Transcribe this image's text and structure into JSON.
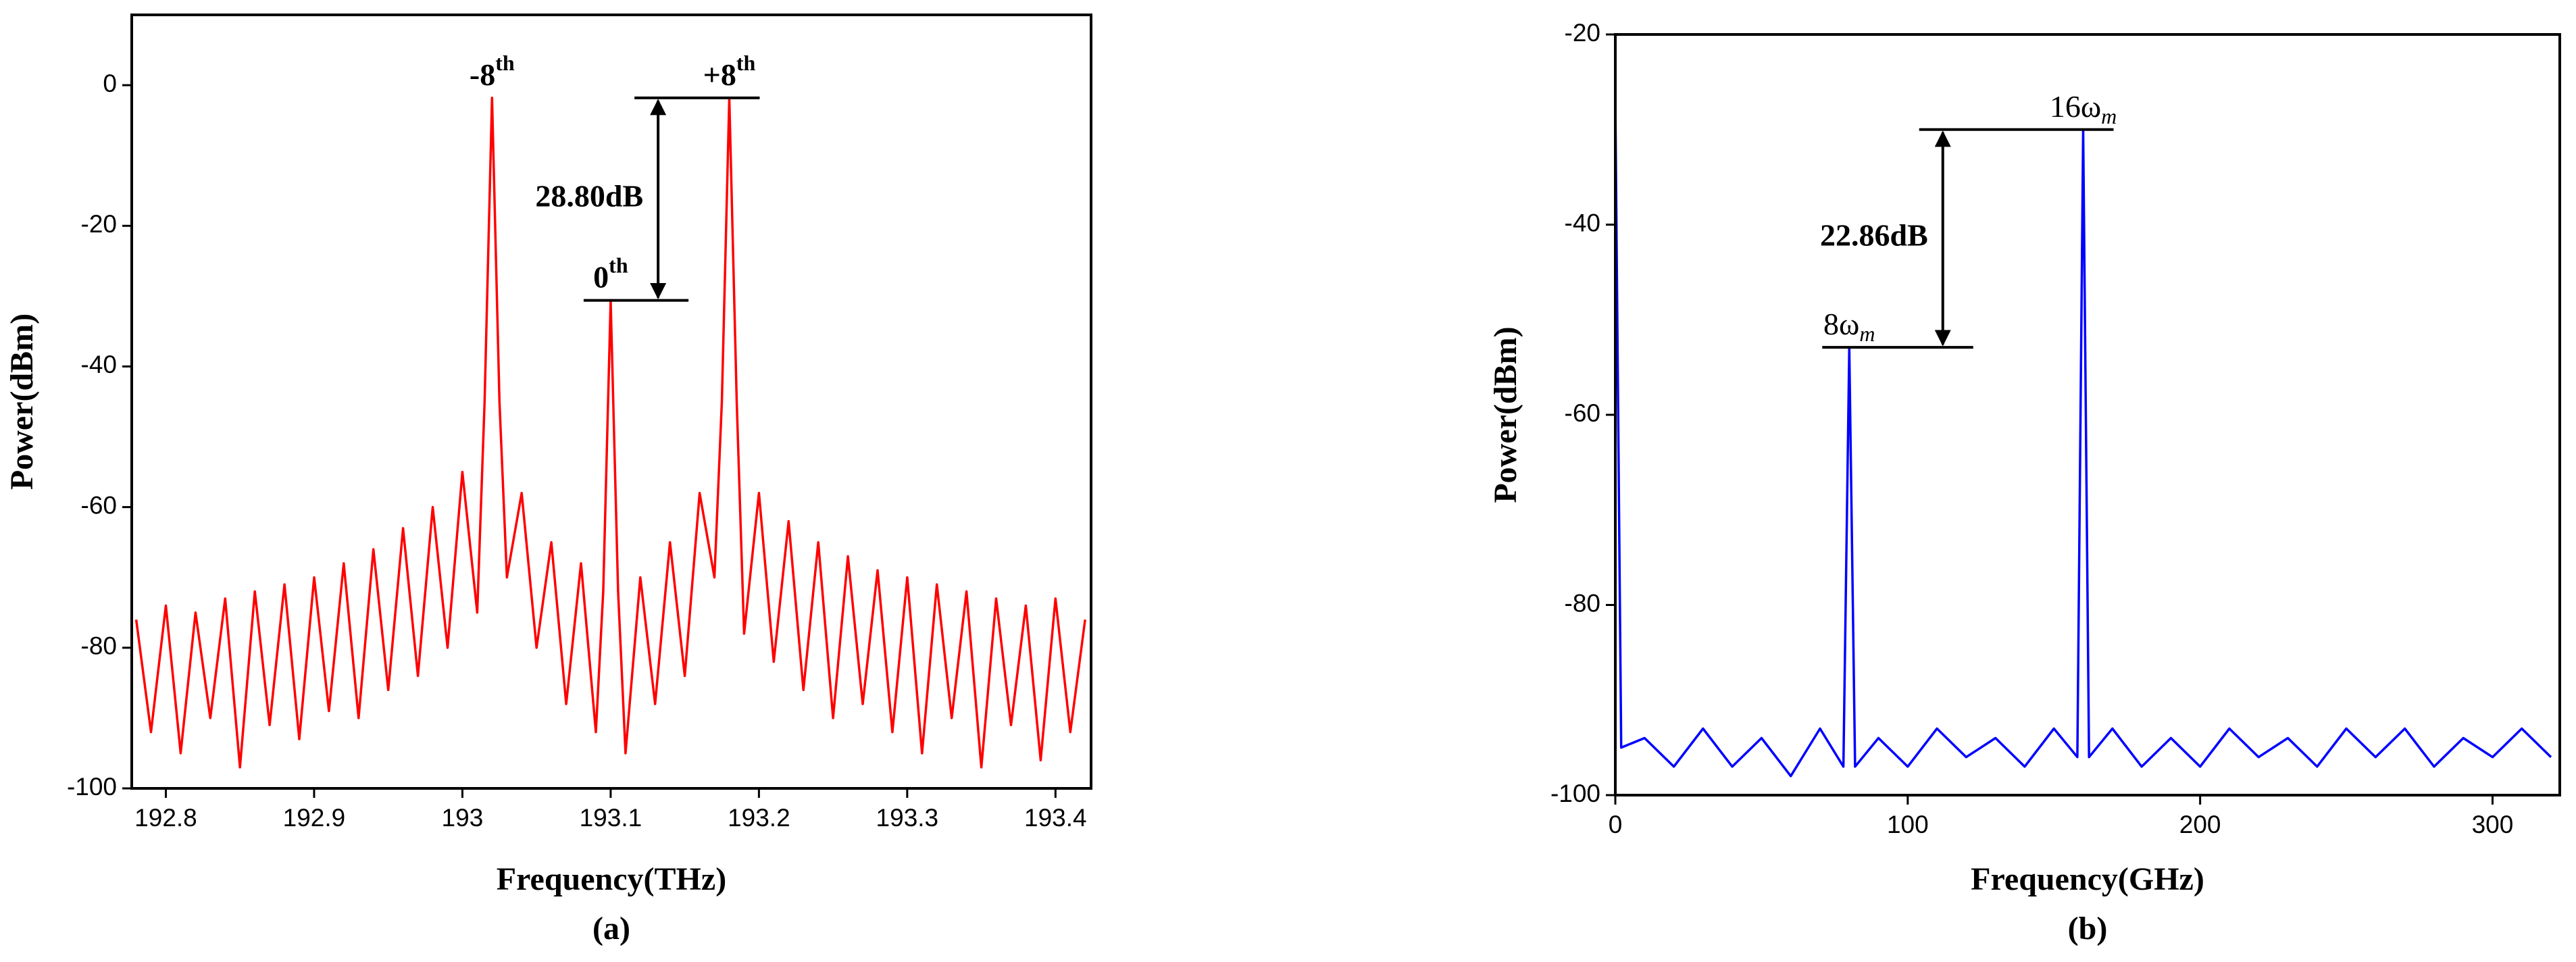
{
  "chart_data": [
    {
      "type": "line",
      "color": "#ff0000",
      "x": [
        192.78,
        192.79,
        192.8,
        192.81,
        192.82,
        192.83,
        192.84,
        192.85,
        192.86,
        192.87,
        192.88,
        192.89,
        192.9,
        192.91,
        192.92,
        192.93,
        192.94,
        192.95,
        192.96,
        192.97,
        192.98,
        192.99,
        193.0,
        193.01,
        193.015,
        193.02,
        193.025,
        193.03,
        193.04,
        193.05,
        193.06,
        193.07,
        193.08,
        193.09,
        193.095,
        193.1,
        193.105,
        193.11,
        193.12,
        193.13,
        193.14,
        193.15,
        193.16,
        193.17,
        193.175,
        193.18,
        193.185,
        193.19,
        193.2,
        193.21,
        193.22,
        193.23,
        193.24,
        193.25,
        193.26,
        193.27,
        193.28,
        193.29,
        193.3,
        193.31,
        193.32,
        193.33,
        193.34,
        193.35,
        193.36,
        193.37,
        193.38,
        193.39,
        193.4,
        193.41,
        193.42
      ],
      "values": [
        -76,
        -92,
        -74,
        -95,
        -75,
        -90,
        -73,
        -97,
        -72,
        -91,
        -71,
        -93,
        -70,
        -89,
        -68,
        -90,
        -66,
        -86,
        -63,
        -84,
        -60,
        -80,
        -55,
        -75,
        -45,
        -1.8,
        -45,
        -70,
        -58,
        -80,
        -65,
        -88,
        -68,
        -92,
        -72,
        -30.6,
        -72,
        -95,
        -70,
        -88,
        -65,
        -84,
        -58,
        -70,
        -45,
        -1.8,
        -45,
        -78,
        -58,
        -82,
        -62,
        -86,
        -65,
        -90,
        -67,
        -88,
        -69,
        -92,
        -70,
        -95,
        -71,
        -90,
        -72,
        -97,
        -73,
        -91,
        -74,
        -96,
        -73,
        -92,
        -76
      ],
      "xlim": [
        192.777,
        193.424
      ],
      "xticks": [
        192.8,
        192.9,
        193.0,
        193.1,
        193.2,
        193.3,
        193.4
      ],
      "ylim": [
        -100,
        10
      ],
      "yticks": [
        -100,
        -80,
        -60,
        -40,
        -20,
        0
      ],
      "x_label": "Frequency(THz)",
      "y_label": "Power(dBm)",
      "caption": "(a)",
      "annotations": [
        {
          "text": "-8",
          "sup": "th",
          "x": 193.02
        },
        {
          "text": "0",
          "sup": "th",
          "x": 193.1
        },
        {
          "text": "+8",
          "sup": "th",
          "x": 193.18
        }
      ],
      "bracket": {
        "label": "28.80dB",
        "x": [
          193.1,
          193.18
        ]
      }
    },
    {
      "type": "line",
      "color": "#0000ff",
      "x": [
        0,
        2,
        10,
        20,
        30,
        40,
        50,
        60,
        70,
        78,
        80,
        82,
        90,
        100,
        110,
        120,
        130,
        140,
        150,
        158,
        160,
        162,
        170,
        180,
        190,
        200,
        210,
        220,
        230,
        240,
        250,
        260,
        270,
        280,
        290,
        300,
        310,
        320
      ],
      "values": [
        -27,
        -95,
        -94,
        -97,
        -93,
        -97,
        -94,
        -98,
        -93,
        -97,
        -52.9,
        -97,
        -94,
        -97,
        -93,
        -96,
        -94,
        -97,
        -93,
        -96,
        -30,
        -96,
        -93,
        -97,
        -94,
        -97,
        -93,
        -96,
        -94,
        -97,
        -93,
        -96,
        -93,
        -97,
        -94,
        -96,
        -93,
        -96
      ],
      "xlim": [
        0,
        323
      ],
      "xticks": [
        0,
        100,
        200,
        300
      ],
      "ylim": [
        -100,
        -20
      ],
      "yticks": [
        -100,
        -80,
        -60,
        -40,
        -20
      ],
      "x_label": "Frequency(GHz)",
      "y_label": "Power(dBm)",
      "caption": "(b)",
      "annotations": [
        {
          "text": "8ω",
          "sub": "m",
          "x": 80
        },
        {
          "text": "16ω",
          "sub": "m",
          "x": 160
        }
      ],
      "bracket": {
        "label": "22.86dB",
        "x": [
          80,
          160
        ]
      }
    }
  ]
}
